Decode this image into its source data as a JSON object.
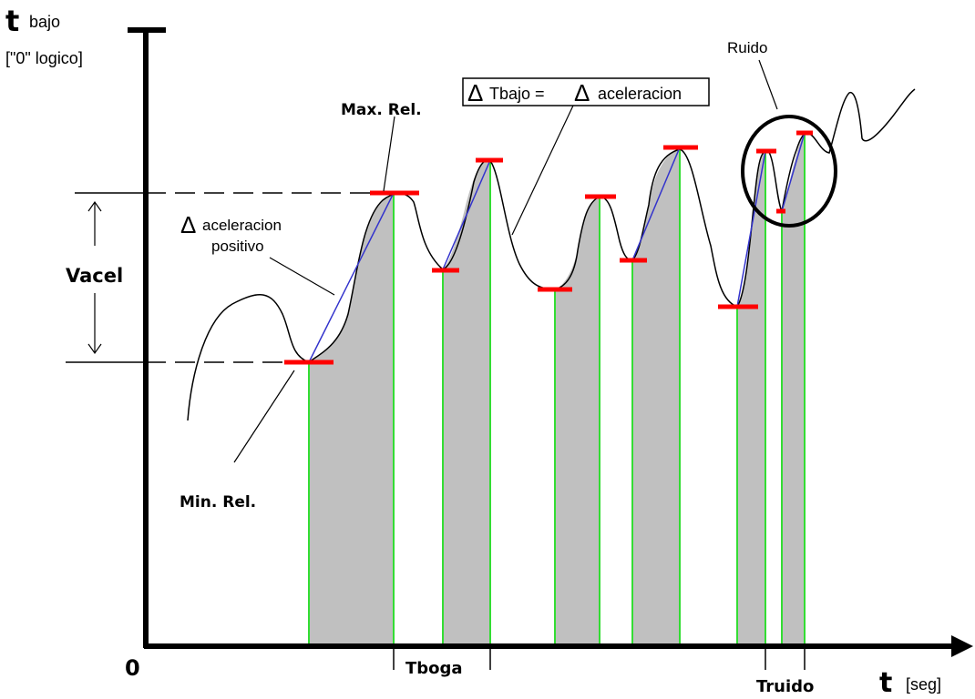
{
  "labels": {
    "y_axis_symbol": "t",
    "y_axis_sub": "bajo",
    "y_axis_desc": "[\"0\" logico]",
    "origin": "0",
    "x_axis_symbol": "t",
    "x_axis_unit": "[seg]",
    "max_rel": "Max. Rel.",
    "min_rel": "Min. Rel.",
    "vacel": "Vacel",
    "delta_symbol": "Δ",
    "delta_accel_line1": "aceleracion",
    "delta_accel_line2": "positivo",
    "formula_part1": "Tbajo = ",
    "formula_part2": "aceleracion",
    "ruido": "Ruido",
    "tboga": "Tboga",
    "truido": "Truido"
  },
  "colors": {
    "signal": "#000000",
    "fill": "#c0c0c0",
    "extrema_marker": "#ff0000",
    "connector": "#3333cc",
    "interval_line": "#33dd33",
    "axis": "#000000"
  }
}
